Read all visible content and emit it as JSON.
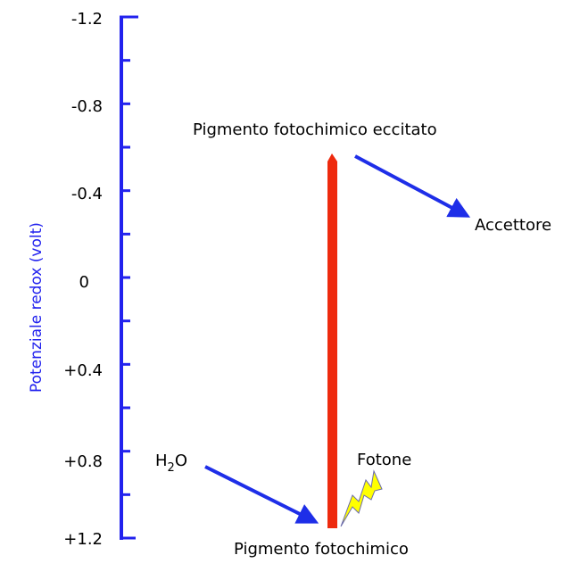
{
  "axis": {
    "label": "Potenziale redox (volt)",
    "ticks": [
      "-1.2",
      "-0.8",
      "-0.4",
      "0",
      "+0.4",
      "+0.8",
      "+1.2"
    ],
    "color": "#2222ee"
  },
  "labels": {
    "excited": "Pigmento fotochimico eccitato",
    "acceptor": "Accettore",
    "pigment": "Pigmento fotochimico",
    "photon": "Fotone",
    "water_main": "H",
    "water_sub": "2",
    "water_end": "O"
  },
  "colors": {
    "bar": "#ee2a0e",
    "arrow": "#1e2ee8",
    "bolt": "#ffff00"
  }
}
